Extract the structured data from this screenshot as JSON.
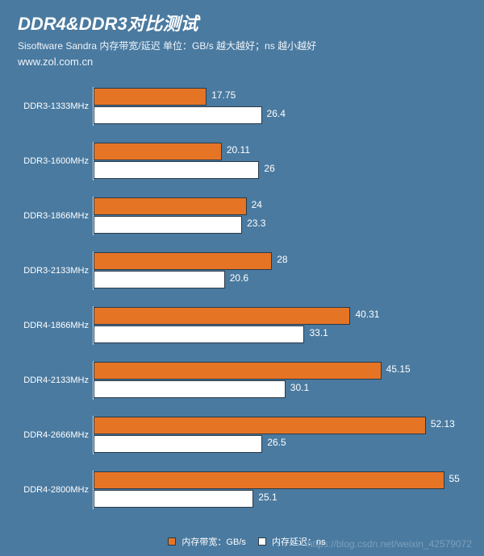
{
  "header": {
    "title": "DDR4&DDR3对比测试",
    "subtitle": "Sisoftware Sandra 内存带宽/延迟    单位：GB/s 越大越好；ns 越小越好",
    "url": "www.zol.com.cn"
  },
  "chart": {
    "type": "bar",
    "orientation": "horizontal",
    "grouped": true,
    "value_max": 60,
    "background_color": "#4a7aa0",
    "categories": [
      "DDR3-1333MHz",
      "DDR3-1600MHz",
      "DDR3-1866MHz",
      "DDR3-2133MHz",
      "DDR4-1866MHz",
      "DDR4-2133MHz",
      "DDR4-2666MHz",
      "DDR4-2800MHz"
    ],
    "series": [
      {
        "name": "内存带宽：GB/s",
        "color": "#e67425",
        "values": [
          17.75,
          20.11,
          24,
          28,
          40.31,
          45.15,
          52.13,
          55
        ]
      },
      {
        "name": "内存延迟：ns",
        "color": "#ffffff",
        "values": [
          26.4,
          26,
          23.3,
          20.6,
          33.1,
          30.1,
          26.5,
          25.1
        ]
      }
    ],
    "label_fontsize": 11,
    "value_fontsize": 12,
    "bar_border_color": "#2b3a47"
  },
  "legend": {
    "items": [
      {
        "swatch": "#e67425",
        "text": "内存带宽：GB/s"
      },
      {
        "swatch": "#ffffff",
        "text": "内存延迟：ns"
      }
    ]
  },
  "watermark": "https://blog.csdn.net/weixin_42579072"
}
